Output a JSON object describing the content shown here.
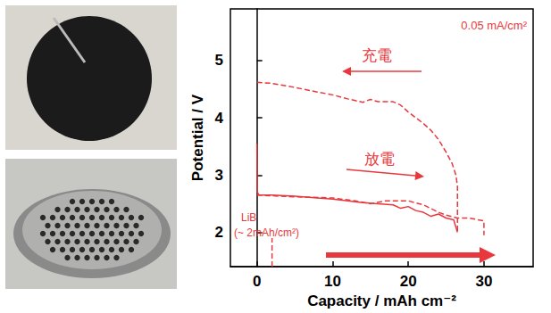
{
  "chart_data": {
    "type": "line",
    "xlabel": "Capacity / mAh cm⁻²",
    "ylabel": "Potential / V",
    "xlim": [
      -3.5,
      36.5
    ],
    "xticks": [
      0,
      10,
      20,
      30
    ],
    "ylim": [
      1.4,
      5.9
    ],
    "yticks": [
      2,
      3,
      4,
      5
    ],
    "grid": false,
    "annotations": [
      "0.05 mA/cm²",
      "充電",
      "放電",
      "LiB",
      "(~ 2mAh/cm²)"
    ],
    "series": [
      {
        "color": "#e8383d",
        "line_style": "dashed",
        "marker": "none",
        "x": [
          0,
          2,
          5,
          8,
          10,
          12,
          13,
          14,
          15,
          16,
          18,
          19,
          20,
          21,
          22,
          23,
          24,
          25,
          25.8,
          26.3,
          26.5,
          26.5
        ],
        "values": [
          4.62,
          4.6,
          4.53,
          4.45,
          4.4,
          4.33,
          4.3,
          4.27,
          4.32,
          4.28,
          4.28,
          4.22,
          4.1,
          4.0,
          3.9,
          3.78,
          3.62,
          3.4,
          3.2,
          3.0,
          2.8,
          2.0
        ]
      },
      {
        "color": "#e8383d",
        "line_style": "solid",
        "marker": "none",
        "x": [
          0,
          0.05,
          0.3,
          2,
          5,
          8,
          10,
          12,
          14,
          16,
          18,
          19,
          20,
          21,
          22,
          23,
          24,
          25,
          26,
          26.5
        ],
        "values": [
          3.55,
          2.7,
          2.65,
          2.65,
          2.63,
          2.6,
          2.58,
          2.55,
          2.52,
          2.5,
          2.48,
          2.42,
          2.45,
          2.38,
          2.35,
          2.28,
          2.32,
          2.25,
          2.22,
          2.0
        ]
      },
      {
        "color": "#e8383d",
        "line_style": "dashed",
        "marker": "none",
        "x": [
          0,
          5,
          10,
          13,
          15,
          17,
          20,
          22,
          24,
          25,
          26.5,
          28,
          30,
          30
        ],
        "values": [
          2.65,
          2.62,
          2.6,
          2.55,
          2.5,
          2.55,
          2.55,
          2.48,
          2.35,
          2.3,
          2.25,
          2.25,
          2.2,
          1.95
        ]
      },
      {
        "color": "#e8383d",
        "line_style": "dashed",
        "marker": "none",
        "x": [
          2,
          2
        ],
        "values": [
          1.4,
          1.9
        ]
      }
    ]
  }
}
